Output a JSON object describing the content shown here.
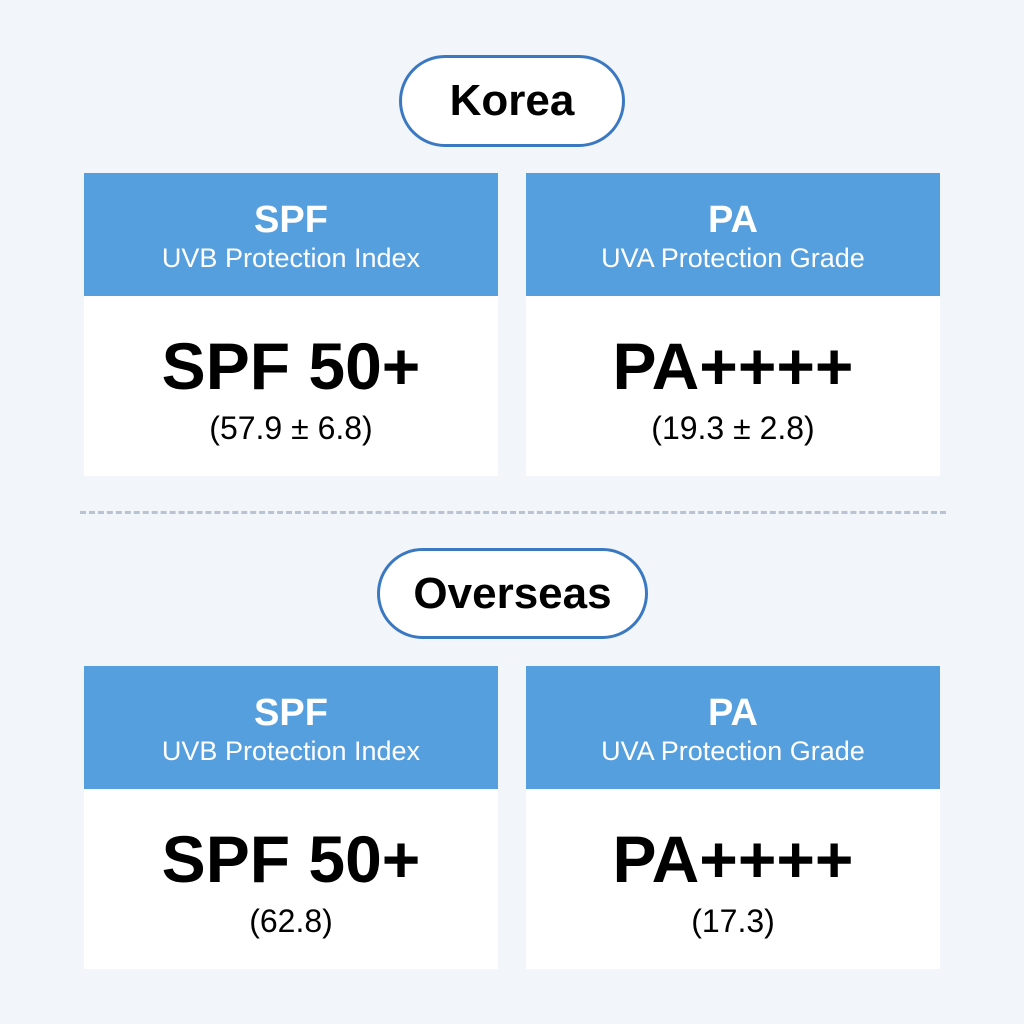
{
  "sections": [
    {
      "label": "Korea",
      "cards": [
        {
          "title": "SPF",
          "subtitle": "UVB Protection Index",
          "value": "SPF 50+",
          "note": "(57.9 ± 6.8)"
        },
        {
          "title": "PA",
          "subtitle": "UVA Protection Grade",
          "value": "PA++++",
          "note": "(19.3 ± 2.8)"
        }
      ]
    },
    {
      "label": "Overseas",
      "cards": [
        {
          "title": "SPF",
          "subtitle": "UVB Protection Index",
          "value": "SPF 50+",
          "note": "(62.8)"
        },
        {
          "title": "PA",
          "subtitle": "UVA Protection Grade",
          "value": "PA++++",
          "note": "(17.3)"
        }
      ]
    }
  ],
  "colors": {
    "header": "#569fde",
    "pill_border": "#3b78c2",
    "background": "#f2f6fa"
  }
}
